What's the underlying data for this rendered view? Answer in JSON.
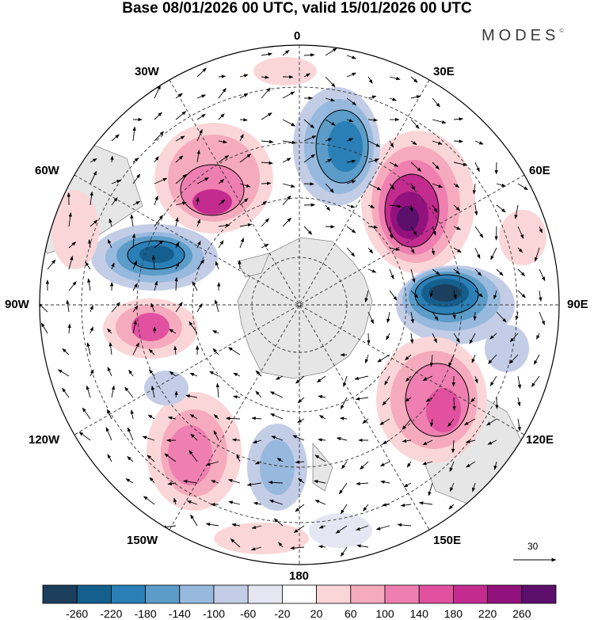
{
  "title": "Base 08/01/2026 00 UTC, valid 15/01/2026 00 UTC",
  "brand": "MODES",
  "brand_mark": "©",
  "longitude_labels": {
    "top": "0",
    "top_right": "30E",
    "upper_right": "60E",
    "right": "90E",
    "lower_right": "120E",
    "bottom_right": "150E",
    "bottom": "180",
    "bottom_left": "150W",
    "lower_left": "120W",
    "left": "90W",
    "upper_left": "60W",
    "top_left": "30W"
  },
  "reference_vector": "30",
  "colorbar": {
    "colors": [
      "#1b3f5c",
      "#155f8f",
      "#2a7fb6",
      "#5b9cc8",
      "#97b9dd",
      "#c3cde6",
      "#e6e6f2",
      "#ffffff",
      "#fbd6d8",
      "#f5abbd",
      "#ee7fb0",
      "#e251a0",
      "#c32b8f",
      "#92127d",
      "#5c0f6b"
    ],
    "labels": [
      "-260",
      "-220",
      "-180",
      "-140",
      "-100",
      "-60",
      "-20",
      "20",
      "60",
      "100",
      "140",
      "180",
      "220",
      "260"
    ]
  },
  "colors": {
    "land": "#e6e6e6",
    "coast": "#8a8a8a",
    "grid": "#333333"
  }
}
